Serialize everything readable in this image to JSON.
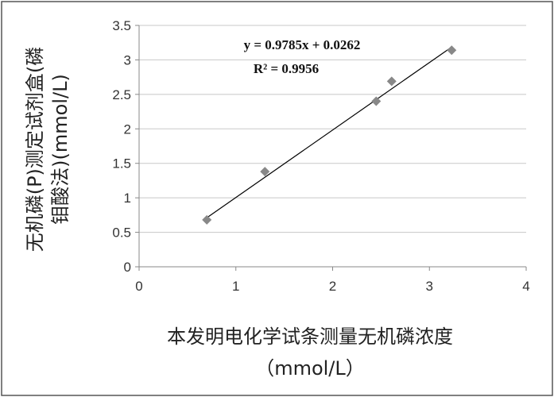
{
  "chart_data": {
    "type": "scatter",
    "x_label": [
      "本发明电化学试条测量无机磷浓度",
      "（mmol/L）"
    ],
    "y_label": [
      "无机磷(P)测定试剂盒(磷",
      "钼酸法)(mmol/L)"
    ],
    "series": [
      {
        "color": "#888888",
        "x": [
          0.7,
          1.3,
          2.45,
          2.61,
          3.23
        ],
        "values": [
          0.68,
          1.38,
          2.4,
          2.69,
          3.14
        ]
      }
    ],
    "trendline": {
      "slope": 0.9785,
      "intercept": 0.0262,
      "equation": "y = 0.9785x + 0.0262",
      "r2_label": "R² = 0.9956",
      "color": "#000000"
    },
    "xlim": [
      0,
      4
    ],
    "xticks": [
      0,
      1,
      2,
      3,
      4
    ],
    "ylim": [
      0,
      3.5
    ],
    "yticks": [
      0,
      0.5,
      1,
      1.5,
      2,
      2.5,
      3,
      3.5
    ],
    "grid": true
  }
}
